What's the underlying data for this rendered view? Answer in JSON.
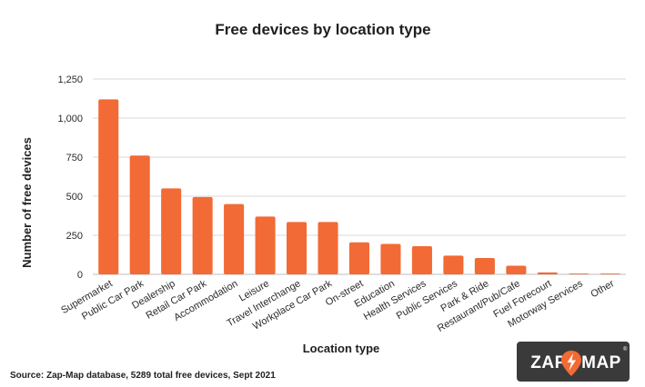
{
  "chart_data": {
    "type": "bar",
    "title": "Free devices by location type",
    "xlabel": "Location type",
    "ylabel": "Number of free devices",
    "ylim": [
      0,
      1250
    ],
    "yticks": [
      0,
      250,
      500,
      750,
      1000,
      1250
    ],
    "ytick_labels": [
      "0",
      "250",
      "500",
      "750",
      "1,000",
      "1,250"
    ],
    "grid": true,
    "bar_color": "#f26a35",
    "categories": [
      "Supermarket",
      "Public Car Park",
      "Dealership",
      "Retail Car Park",
      "Accommodation",
      "Leisure",
      "Travel Interchange",
      "Workplace Car Park",
      "On-street",
      "Education",
      "Health Services",
      "Public Services",
      "Park & Ride",
      "Restaurant/Pub/Cafe",
      "Fuel Forecourt",
      "Motorway Services",
      "Other"
    ],
    "values": [
      1120,
      760,
      550,
      495,
      450,
      370,
      335,
      335,
      205,
      195,
      180,
      120,
      105,
      55,
      12,
      5,
      5
    ]
  },
  "source": "Source: Zap-Map database, 5289 total free devices, Sept 2021",
  "logo": {
    "left": "ZAP",
    "right": "MAP",
    "reg_mark": "®",
    "bg_color": "#3a3a3a",
    "pin_color": "#f26a35"
  }
}
